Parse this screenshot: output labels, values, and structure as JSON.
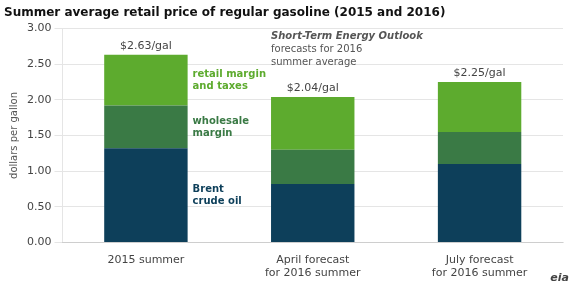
{
  "chart_data": {
    "type": "bar",
    "title": "Summer average retail price of regular gasoline (2015 and 2016)",
    "ylabel": "dollars per gallon",
    "categories": [
      "2015 summer",
      "April forecast\nfor 2016 summer",
      "July forecast\nfor 2016 summer"
    ],
    "series": [
      {
        "name": "Brent\ncrude oil",
        "color": "#0d3f5a",
        "values": [
          1.32,
          0.82,
          1.1
        ]
      },
      {
        "name": "wholesale\nmargin",
        "color": "#3a7a45",
        "values": [
          0.6,
          0.48,
          0.45
        ]
      },
      {
        "name": "retail margin\nand taxes",
        "color": "#5dab2e",
        "values": [
          0.71,
          0.74,
          0.7
        ]
      }
    ],
    "stacked": true,
    "totals": [
      2.63,
      2.04,
      2.25
    ],
    "total_labels": [
      "$2.63/gal",
      "$2.04/gal",
      "$2.25/gal"
    ],
    "annotations": [
      "Short-Term Energy Outlook",
      "forecasts for 2016",
      "summer average"
    ],
    "credit": "eia",
    "ylim": [
      0,
      3.0
    ],
    "yticks": [
      {
        "value": 0.0,
        "label": "0.00"
      },
      {
        "value": 0.5,
        "label": "0.50"
      },
      {
        "value": 1.0,
        "label": "1.00"
      },
      {
        "value": 1.5,
        "label": "1.50"
      },
      {
        "value": 2.0,
        "label": "2.00"
      },
      {
        "value": 2.5,
        "label": "2.50"
      },
      {
        "value": 3.0,
        "label": "3.00"
      }
    ],
    "grid": true
  }
}
